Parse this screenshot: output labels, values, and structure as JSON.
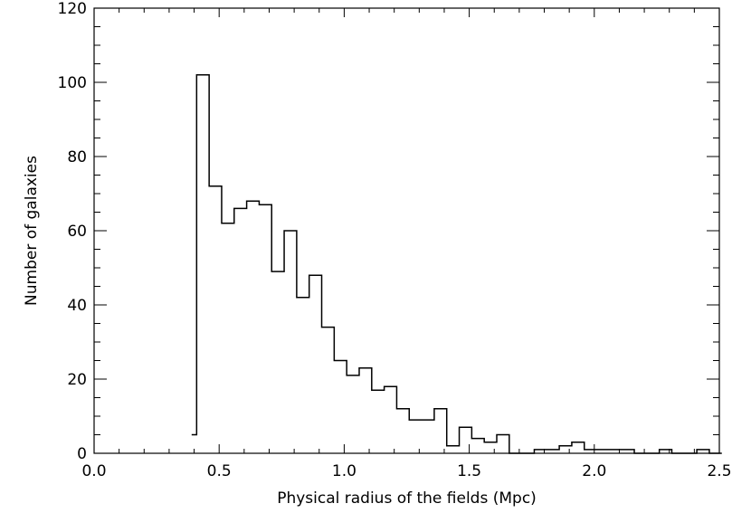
{
  "chart_data": {
    "type": "histogram",
    "xlabel": "Physical radius of the fields (Mpc)",
    "ylabel": "Number of galaxies",
    "xlim": [
      0.0,
      2.5
    ],
    "ylim": [
      0,
      120
    ],
    "x_ticks": [
      0.0,
      0.5,
      1.0,
      1.5,
      2.0,
      2.5
    ],
    "x_tick_labels": [
      "0.0",
      "0.5",
      "1.0",
      "1.5",
      "2.0",
      "2.5"
    ],
    "y_ticks": [
      0,
      20,
      40,
      60,
      80,
      100,
      120
    ],
    "y_tick_labels": [
      "0",
      "20",
      "40",
      "60",
      "80",
      "100",
      "120"
    ],
    "x_minor_step": 0.1,
    "y_minor_step": 5,
    "bin_width": 0.05,
    "bins_start": [
      0.41,
      0.46,
      0.51,
      0.56,
      0.61,
      0.66,
      0.71,
      0.76,
      0.81,
      0.86,
      0.91,
      0.96,
      1.01,
      1.06,
      1.11,
      1.16,
      1.21,
      1.26,
      1.31,
      1.36,
      1.41,
      1.46,
      1.51,
      1.56,
      1.61,
      1.66,
      1.71,
      1.76,
      1.81,
      1.86,
      1.91,
      1.96,
      2.01,
      2.06,
      2.11,
      2.16,
      2.21,
      2.26,
      2.31,
      2.36,
      2.41,
      2.46
    ],
    "counts": [
      102,
      72,
      62,
      66,
      68,
      67,
      49,
      60,
      42,
      48,
      34,
      25,
      21,
      23,
      17,
      18,
      12,
      9,
      9,
      12,
      2,
      7,
      4,
      3,
      5,
      0,
      0,
      1,
      1,
      2,
      3,
      1,
      1,
      1,
      1,
      0,
      0,
      1,
      0,
      0,
      1,
      0
    ],
    "first_step": {
      "x": 0.41,
      "y": 5
    },
    "grid": false,
    "legend": "none"
  }
}
